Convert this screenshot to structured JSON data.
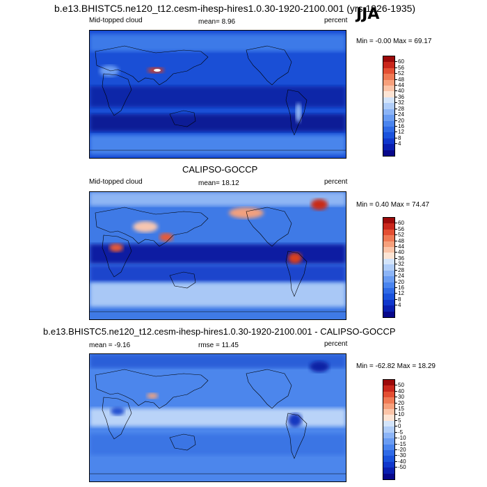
{
  "header": {
    "title": "b.e13.BHISTC5.ne120_t12.cesm-ihesp-hires1.0.30-1920-2100.001 (yrs 1926-1935)",
    "season": "JJA"
  },
  "panels": [
    {
      "id": "model",
      "title": "",
      "left_label": "Mid-topped cloud",
      "center_label": "mean=  8.96",
      "right_label": "percent",
      "minmax_label": "Min =  -0.00 Max =  69.17",
      "colorbar_labels": [
        "60",
        "56",
        "52",
        "48",
        "44",
        "40",
        "36",
        "32",
        "28",
        "24",
        "20",
        "16",
        "12",
        "8",
        "4"
      ],
      "colors": [
        "#08088a",
        "#0a1fb0",
        "#1037cc",
        "#1a52dc",
        "#2f6ae6",
        "#4a84ee",
        "#6a9cf2",
        "#8cb4f6",
        "#b0cdf8",
        "#d3e4fa",
        "#fde4d4",
        "#fbc4a8",
        "#f6a07c",
        "#ef7a55",
        "#e34f33",
        "#c9271c",
        "#9c0a0a"
      ]
    },
    {
      "id": "obs",
      "title": "CALIPSO-GOCCP",
      "left_label": "Mid-topped cloud",
      "center_label": "mean=  18.12",
      "right_label": "percent",
      "minmax_label": "Min =   0.40 Max =  74.47",
      "colorbar_labels": [
        "60",
        "56",
        "52",
        "48",
        "44",
        "40",
        "36",
        "32",
        "28",
        "24",
        "20",
        "16",
        "12",
        "8",
        "4"
      ],
      "colors": [
        "#08088a",
        "#0a1fb0",
        "#1037cc",
        "#1a52dc",
        "#2f6ae6",
        "#4a84ee",
        "#6a9cf2",
        "#8cb4f6",
        "#b0cdf8",
        "#d3e4fa",
        "#fde4d4",
        "#fbc4a8",
        "#f6a07c",
        "#ef7a55",
        "#e34f33",
        "#c9271c",
        "#9c0a0a"
      ]
    },
    {
      "id": "diff",
      "title": "b.e13.BHISTC5.ne120_t12.cesm-ihesp-hires1.0.30-1920-2100.001 - CALIPSO-GOCCP",
      "left_label": "mean =  -9.16",
      "center_label": "rmse =  11.45",
      "right_label": "percent",
      "minmax_label": "Min = -62.82 Max =  18.29",
      "colorbar_labels": [
        "50",
        "40",
        "30",
        "20",
        "15",
        "10",
        "5",
        "0",
        "-5",
        "-10",
        "-15",
        "-20",
        "-30",
        "-40",
        "-50"
      ],
      "colors": [
        "#08088a",
        "#0a1fb0",
        "#1037cc",
        "#1a52dc",
        "#2f6ae6",
        "#4a84ee",
        "#6a9cf2",
        "#8cb4f6",
        "#b0cdf8",
        "#d3e4fa",
        "#fde4d4",
        "#fbc4a8",
        "#f6a07c",
        "#ef7a55",
        "#e34f33",
        "#c9271c",
        "#9c0a0a"
      ]
    }
  ]
}
